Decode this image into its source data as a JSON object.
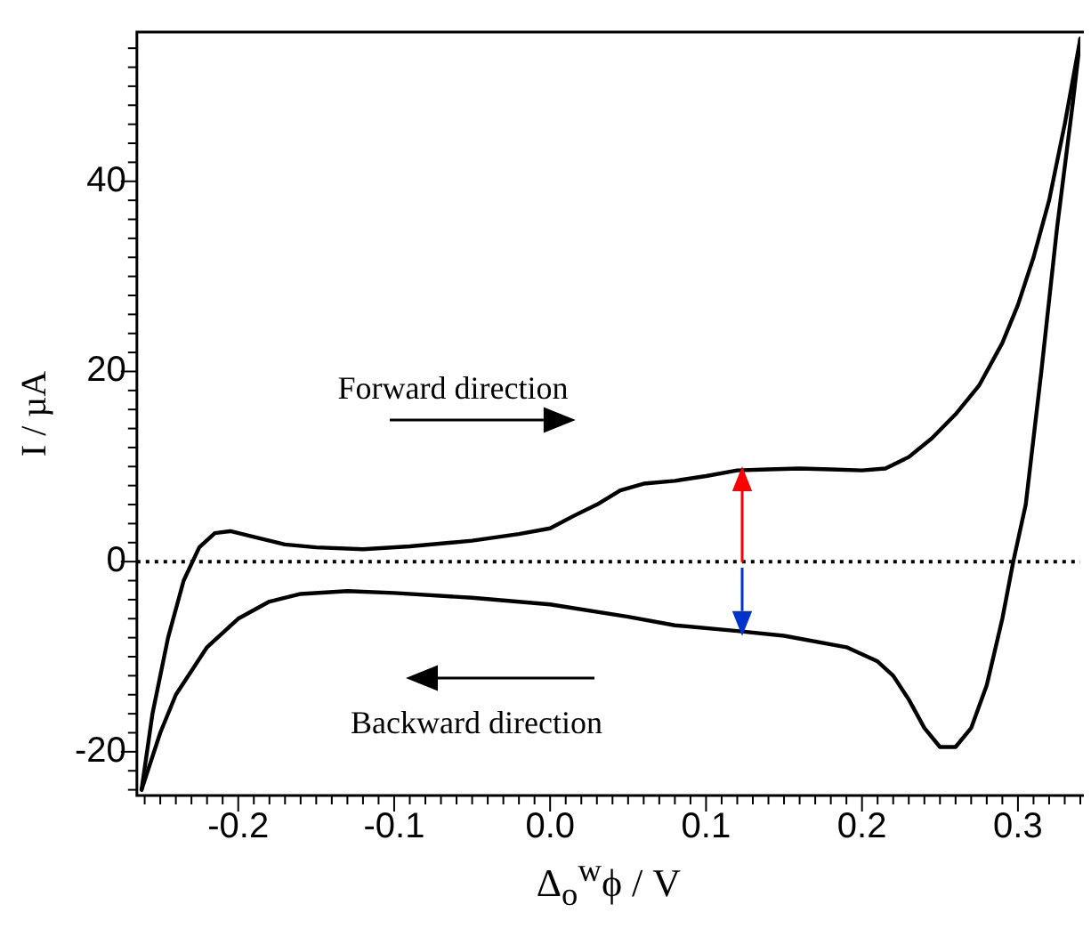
{
  "chart_data": {
    "type": "line",
    "xlabel": "Δ$_{o}$$^{w}$ϕ / V",
    "ylabel": "I / µA",
    "annotations": [
      "Forward direction",
      "Backward direction"
    ],
    "series": [
      {
        "color": "#000000",
        "x": [
          -0.262,
          -0.255,
          -0.245,
          -0.235,
          -0.225,
          -0.215,
          -0.205,
          -0.19,
          -0.17,
          -0.15,
          -0.12,
          -0.09,
          -0.05,
          -0.02,
          0.0,
          0.015,
          0.03,
          0.045,
          0.06,
          0.08,
          0.1,
          0.12,
          0.14,
          0.16,
          0.18,
          0.2,
          0.215,
          0.23,
          0.245,
          0.26,
          0.275,
          0.29,
          0.3,
          0.31,
          0.32,
          0.33,
          0.34
        ],
        "values": [
          -24,
          -16,
          -8,
          -2,
          1.5,
          3,
          3.2,
          2.6,
          1.8,
          1.5,
          1.3,
          1.6,
          2.2,
          2.9,
          3.5,
          4.8,
          6,
          7.5,
          8.2,
          8.5,
          9,
          9.6,
          9.7,
          9.8,
          9.7,
          9.6,
          9.8,
          11,
          13,
          15.5,
          18.5,
          23,
          27,
          32,
          38,
          46,
          55
        ]
      },
      {
        "color": "#000000",
        "x": [
          0.34,
          0.335,
          0.325,
          0.315,
          0.305,
          0.297,
          0.29,
          0.28,
          0.27,
          0.26,
          0.25,
          0.24,
          0.23,
          0.22,
          0.21,
          0.19,
          0.15,
          0.12,
          0.08,
          0.05,
          0.0,
          -0.05,
          -0.1,
          -0.13,
          -0.16,
          -0.18,
          -0.2,
          -0.22,
          -0.24,
          -0.25,
          -0.262
        ],
        "values": [
          55,
          48,
          35,
          20,
          6,
          0,
          -6,
          -13,
          -17.5,
          -19.5,
          -19.5,
          -17.5,
          -14.5,
          -12,
          -10.5,
          -9,
          -7.8,
          -7.3,
          -6.7,
          -5.8,
          -4.5,
          -3.8,
          -3.3,
          -3.1,
          -3.4,
          -4.2,
          -6,
          -9,
          -14,
          -18,
          -24
        ]
      }
    ],
    "xlim": [
      -0.265,
      0.34
    ],
    "ylim": [
      -24.6,
      55.7
    ],
    "xticks": [
      {
        "value": -0.26,
        "label": null
      },
      {
        "value": -0.25,
        "label": null
      },
      {
        "value": -0.24,
        "label": null
      },
      {
        "value": -0.23,
        "label": null
      },
      {
        "value": -0.22,
        "label": null
      },
      {
        "value": -0.21,
        "label": null
      },
      -0.2,
      {
        "value": -0.19,
        "label": null
      },
      {
        "value": -0.18,
        "label": null
      },
      {
        "value": -0.17,
        "label": null
      },
      {
        "value": -0.16,
        "label": null
      },
      {
        "value": -0.15,
        "label": null
      },
      {
        "value": -0.14,
        "label": null
      },
      {
        "value": -0.13,
        "label": null
      },
      {
        "value": -0.12,
        "label": null
      },
      {
        "value": -0.11,
        "label": null
      },
      -0.1,
      {
        "value": -0.09,
        "label": null
      },
      {
        "value": -0.08,
        "label": null
      },
      {
        "value": -0.07,
        "label": null
      },
      {
        "value": -0.06,
        "label": null
      },
      {
        "value": -0.05,
        "label": null
      },
      {
        "value": -0.04,
        "label": null
      },
      {
        "value": -0.03,
        "label": null
      },
      {
        "value": -0.02,
        "label": null
      },
      {
        "value": -0.01,
        "label": null
      },
      {
        "value": 0,
        "label": "0.0"
      },
      {
        "value": 0.01,
        "label": null
      },
      {
        "value": 0.02,
        "label": null
      },
      {
        "value": 0.03,
        "label": null
      },
      {
        "value": 0.04,
        "label": null
      },
      {
        "value": 0.05,
        "label": null
      },
      {
        "value": 0.06,
        "label": null
      },
      {
        "value": 0.07,
        "label": null
      },
      {
        "value": 0.08,
        "label": null
      },
      {
        "value": 0.09,
        "label": null
      },
      0.1,
      {
        "value": 0.11,
        "label": null
      },
      {
        "value": 0.12,
        "label": null
      },
      {
        "value": 0.13,
        "label": null
      },
      {
        "value": 0.14,
        "label": null
      },
      {
        "value": 0.15,
        "label": null
      },
      {
        "value": 0.16,
        "label": null
      },
      {
        "value": 0.17,
        "label": null
      },
      {
        "value": 0.18,
        "label": null
      },
      {
        "value": 0.19,
        "label": null
      },
      0.2,
      {
        "value": 0.21,
        "label": null
      },
      {
        "value": 0.22,
        "label": null
      },
      {
        "value": 0.23,
        "label": null
      },
      {
        "value": 0.24,
        "label": null
      },
      {
        "value": 0.25,
        "label": null
      },
      {
        "value": 0.26,
        "label": null
      },
      {
        "value": 0.27,
        "label": null
      },
      {
        "value": 0.28,
        "label": null
      },
      {
        "value": 0.29,
        "label": null
      },
      0.3,
      {
        "value": 0.31,
        "label": null
      },
      {
        "value": 0.32,
        "label": null
      },
      {
        "value": 0.33,
        "label": null
      },
      {
        "value": 0.34,
        "label": null
      }
    ],
    "yticks": [
      {
        "value": -24,
        "label": null
      },
      {
        "value": -22,
        "label": null
      },
      -20,
      {
        "value": -18,
        "label": null
      },
      {
        "value": -16,
        "label": null
      },
      {
        "value": -14,
        "label": null
      },
      {
        "value": -12,
        "label": null
      },
      {
        "value": -10,
        "label": null
      },
      {
        "value": -8,
        "label": null
      },
      {
        "value": -6,
        "label": null
      },
      {
        "value": -4,
        "label": null
      },
      {
        "value": -2,
        "label": null
      },
      0,
      {
        "value": 2,
        "label": null
      },
      {
        "value": 4,
        "label": null
      },
      {
        "value": 6,
        "label": null
      },
      {
        "value": 8,
        "label": null
      },
      {
        "value": 10,
        "label": null
      },
      {
        "value": 12,
        "label": null
      },
      {
        "value": 14,
        "label": null
      },
      {
        "value": 16,
        "label": null
      },
      {
        "value": 18,
        "label": null
      },
      20,
      {
        "value": 22,
        "label": null
      },
      {
        "value": 24,
        "label": null
      },
      {
        "value": 26,
        "label": null
      },
      {
        "value": 28,
        "label": null
      },
      {
        "value": 30,
        "label": null
      },
      {
        "value": 32,
        "label": null
      },
      {
        "value": 34,
        "label": null
      },
      {
        "value": 36,
        "label": null
      },
      {
        "value": 38,
        "label": null
      },
      40,
      {
        "value": 42,
        "label": null
      },
      {
        "value": 44,
        "label": null
      },
      {
        "value": 46,
        "label": null
      },
      {
        "value": 48,
        "label": null
      },
      {
        "value": 50,
        "label": null
      },
      {
        "value": 52,
        "label": null
      },
      {
        "value": 54,
        "label": null
      }
    ],
    "ref_lines": [
      {
        "axis": "y",
        "value": 0,
        "line_style": "dotted",
        "color": "#000000"
      }
    ],
    "grid": false,
    "legend": false
  }
}
